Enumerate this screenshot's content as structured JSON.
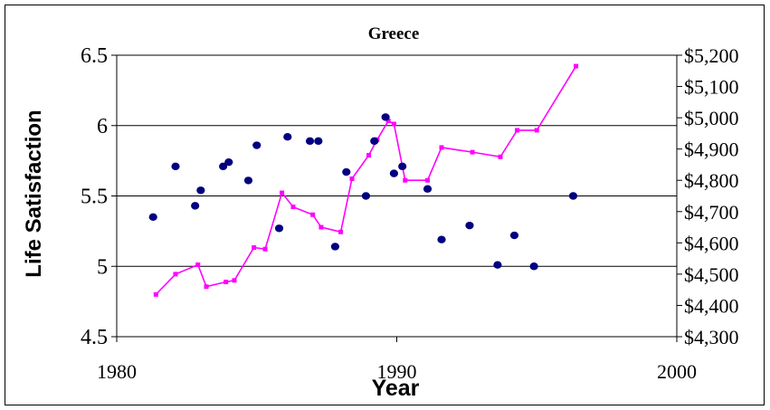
{
  "chart_data": {
    "type": "scatter",
    "title": "Greece",
    "xlabel": "Year",
    "ylabel": "Life Satisfaction",
    "y2label": "",
    "xlim": [
      1980,
      2000
    ],
    "ylim": [
      4.5,
      6.5
    ],
    "y2lim": [
      4300,
      5200
    ],
    "x_ticks": [
      "1980",
      "1990",
      "2000"
    ],
    "y_ticks": [
      "4.5",
      "5",
      "5.5",
      "6",
      "6.5"
    ],
    "y2_ticks": [
      "$4,300",
      "$4,400",
      "$4,500",
      "$4,600",
      "$4,700",
      "$4,800",
      "$4,900",
      "$5,000",
      "$5,100",
      "$5,200"
    ],
    "grid": "horizontal",
    "series": [
      {
        "axis": "left",
        "kind": "scatter",
        "color": "#000080",
        "points": [
          [
            1981.3,
            5.35
          ],
          [
            1982.1,
            5.71
          ],
          [
            1982.8,
            5.43
          ],
          [
            1983.0,
            5.54
          ],
          [
            1983.8,
            5.71
          ],
          [
            1984.0,
            5.74
          ],
          [
            1984.7,
            5.61
          ],
          [
            1985.0,
            5.86
          ],
          [
            1985.8,
            5.27
          ],
          [
            1986.1,
            5.92
          ],
          [
            1986.9,
            5.89
          ],
          [
            1987.2,
            5.89
          ],
          [
            1987.8,
            5.14
          ],
          [
            1988.2,
            5.67
          ],
          [
            1988.9,
            5.5
          ],
          [
            1989.2,
            5.89
          ],
          [
            1989.6,
            6.06
          ],
          [
            1989.9,
            5.66
          ],
          [
            1990.2,
            5.71
          ],
          [
            1991.1,
            5.55
          ],
          [
            1991.6,
            5.19
          ],
          [
            1992.6,
            5.29
          ],
          [
            1993.6,
            5.01
          ],
          [
            1994.2,
            5.22
          ],
          [
            1994.9,
            5.0
          ],
          [
            1996.3,
            5.5
          ]
        ]
      },
      {
        "axis": "right",
        "kind": "line",
        "color": "#ff00ff",
        "points": [
          [
            1981.4,
            4435
          ],
          [
            1982.1,
            4500
          ],
          [
            1982.9,
            4530
          ],
          [
            1983.2,
            4460
          ],
          [
            1983.9,
            4475
          ],
          [
            1984.2,
            4480
          ],
          [
            1984.9,
            4585
          ],
          [
            1985.3,
            4580
          ],
          [
            1985.9,
            4760
          ],
          [
            1986.3,
            4715
          ],
          [
            1987.0,
            4690
          ],
          [
            1987.3,
            4650
          ],
          [
            1988.0,
            4635
          ],
          [
            1988.4,
            4805
          ],
          [
            1989.0,
            4880
          ],
          [
            1989.3,
            4930
          ],
          [
            1989.7,
            4990
          ],
          [
            1989.9,
            4980
          ],
          [
            1990.3,
            4800
          ],
          [
            1991.1,
            4800
          ],
          [
            1991.6,
            4905
          ],
          [
            1992.7,
            4890
          ],
          [
            1993.7,
            4875
          ],
          [
            1994.3,
            4960
          ],
          [
            1995.0,
            4960
          ],
          [
            1996.4,
            5165
          ]
        ]
      }
    ]
  }
}
